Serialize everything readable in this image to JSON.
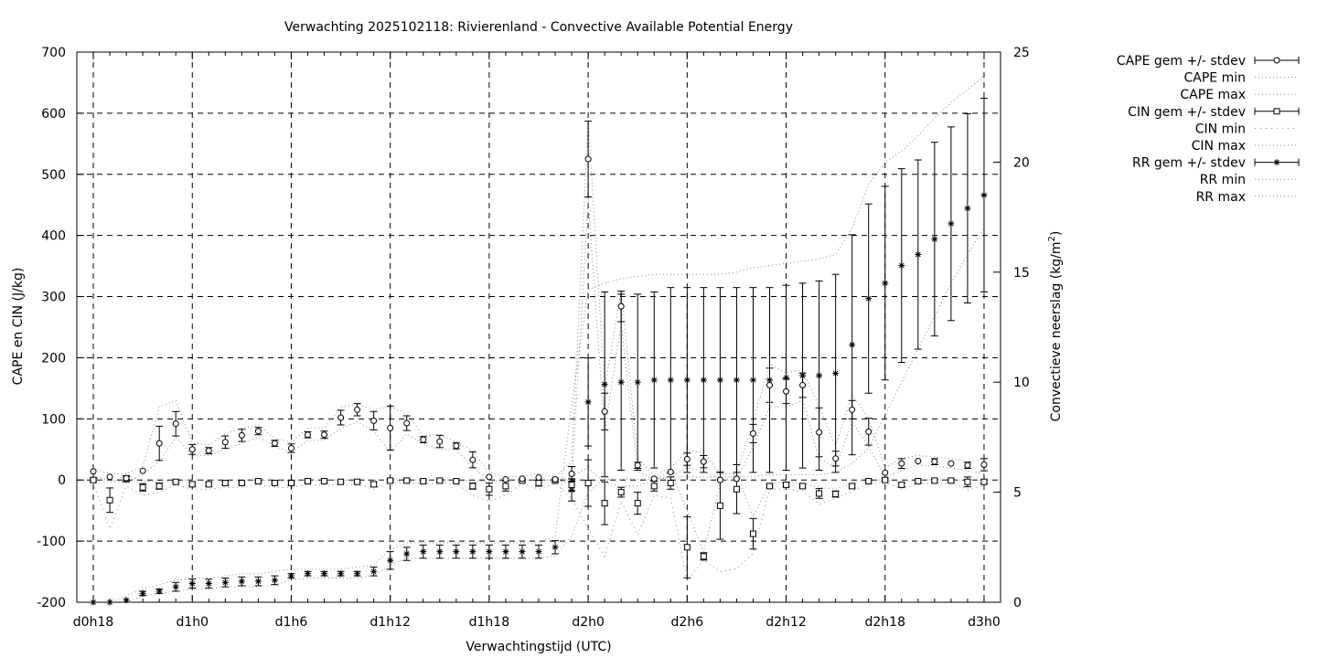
{
  "chart_data": {
    "type": "scatter",
    "title": "Verwachting 2025102118: Rivierenland - Convective Available Potential Energy",
    "xlabel": "Verwachtingstijd (UTC)",
    "ylabel": "CAPE en CIN (J/kg)",
    "y2label_main": "Convectieve neerslag (kg/m",
    "y2label_sup": "2",
    "y2label_end": ")",
    "x_ticks": [
      "d0h18",
      "d1h0",
      "d1h6",
      "d1h12",
      "d1h18",
      "d2h0",
      "d2h6",
      "d2h12",
      "d2h18",
      "d3h0"
    ],
    "x_unit": "hours since d0h0",
    "xlim": [
      17,
      73
    ],
    "ylim": [
      -200,
      700
    ],
    "y_ticks": [
      -200,
      -100,
      0,
      100,
      200,
      300,
      400,
      500,
      600,
      700
    ],
    "y2lim": [
      0,
      25
    ],
    "y2_ticks": [
      0,
      5,
      10,
      15,
      20,
      25
    ],
    "grid": true,
    "legend_placement": "outside-right",
    "legend": [
      {
        "label": "CAPE gem +/- stdev",
        "marker": "circle",
        "style": "errorbar"
      },
      {
        "label": "CAPE min",
        "style": "dotted"
      },
      {
        "label": "CAPE max",
        "style": "dotted"
      },
      {
        "label": "CIN gem +/- stdev",
        "marker": "square",
        "style": "errorbar"
      },
      {
        "label": "CIN min",
        "style": "dotted-sparse"
      },
      {
        "label": "CIN max",
        "style": "dotted"
      },
      {
        "label": "RR gem +/- stdev",
        "marker": "star",
        "style": "errorbar"
      },
      {
        "label": "RR min",
        "style": "dotted"
      },
      {
        "label": "RR max",
        "style": "dotted"
      }
    ],
    "cape": {
      "x": [
        18,
        19,
        20,
        21,
        22,
        23,
        24,
        25,
        26,
        27,
        28,
        29,
        30,
        31,
        32,
        33,
        34,
        35,
        36,
        37,
        38,
        39,
        40,
        41,
        42,
        43,
        44,
        45,
        46,
        47,
        48,
        49,
        50,
        51,
        52,
        53,
        54,
        55,
        56,
        57,
        58,
        59,
        60,
        61,
        62,
        63,
        64,
        65,
        66,
        67,
        68,
        69,
        70,
        71,
        72
      ],
      "y": [
        14,
        5,
        3,
        15,
        60,
        92,
        50,
        48,
        62,
        73,
        80,
        60,
        52,
        74,
        74,
        102,
        115,
        97,
        85,
        93,
        66,
        63,
        56,
        33,
        5,
        1,
        2,
        4,
        1,
        10,
        525,
        112,
        284,
        24,
        2,
        13,
        34,
        30,
        0,
        2,
        76,
        155,
        145,
        155,
        78,
        35,
        115,
        79,
        12,
        27,
        31,
        30,
        27,
        24,
        25
      ],
      "err": [
        0,
        0,
        0,
        0,
        28,
        20,
        8,
        5,
        10,
        10,
        6,
        5,
        7,
        5,
        6,
        12,
        10,
        15,
        36,
        12,
        5,
        10,
        5,
        13,
        0,
        0,
        0,
        0,
        0,
        12,
        62,
        30,
        25,
        5,
        0,
        0,
        10,
        10,
        0,
        0,
        15,
        28,
        20,
        20,
        40,
        12,
        15,
        22,
        0,
        8,
        0,
        5,
        0,
        5,
        10
      ]
    },
    "cape_min": {
      "x": [
        18,
        19,
        20,
        21,
        22,
        23,
        24,
        25,
        26,
        27,
        28,
        29,
        30,
        31,
        32,
        33,
        34,
        35,
        36,
        37,
        38,
        39,
        40,
        41,
        42,
        43,
        44,
        45,
        46,
        47,
        48,
        49,
        50,
        51,
        52,
        53,
        54,
        55,
        56,
        57,
        58,
        59,
        60,
        61,
        62,
        63,
        64,
        65,
        66,
        67,
        68,
        69,
        70,
        71,
        72
      ],
      "y": [
        5,
        0,
        -5,
        10,
        30,
        70,
        40,
        40,
        50,
        60,
        70,
        55,
        45,
        65,
        65,
        85,
        95,
        80,
        45,
        75,
        60,
        50,
        50,
        20,
        0,
        0,
        0,
        0,
        0,
        -5,
        460,
        80,
        255,
        15,
        0,
        5,
        20,
        15,
        0,
        0,
        55,
        120,
        120,
        130,
        35,
        20,
        95,
        55,
        5,
        15,
        25,
        22,
        20,
        15,
        10
      ]
    },
    "cape_max": {
      "x": [
        18,
        19,
        20,
        21,
        22,
        23,
        24,
        25,
        26,
        27,
        28,
        29,
        30,
        31,
        32,
        33,
        34,
        35,
        36,
        37,
        38,
        39,
        40,
        41,
        42,
        43,
        44,
        45,
        46,
        47,
        48,
        49,
        50,
        51,
        52,
        53,
        54,
        55,
        56,
        57,
        58,
        59,
        60,
        61,
        62,
        63,
        64,
        65,
        66,
        67,
        68,
        69,
        70,
        71,
        72
      ],
      "y": [
        20,
        10,
        10,
        22,
        120,
        130,
        60,
        58,
        75,
        85,
        90,
        68,
        62,
        85,
        85,
        118,
        125,
        115,
        120,
        108,
        72,
        75,
        62,
        48,
        12,
        5,
        6,
        10,
        5,
        30,
        590,
        150,
        310,
        35,
        8,
        20,
        48,
        45,
        10,
        10,
        95,
        190,
        175,
        180,
        120,
        55,
        140,
        100,
        20,
        35,
        40,
        38,
        35,
        30,
        35
      ]
    },
    "cin": {
      "x": [
        18,
        19,
        20,
        21,
        22,
        23,
        24,
        25,
        26,
        27,
        28,
        29,
        30,
        31,
        32,
        33,
        34,
        35,
        36,
        37,
        38,
        39,
        40,
        41,
        42,
        43,
        44,
        45,
        46,
        47,
        48,
        49,
        50,
        51,
        52,
        53,
        54,
        55,
        56,
        57,
        58,
        59,
        60,
        61,
        62,
        63,
        64,
        65,
        66,
        67,
        68,
        69,
        70,
        71,
        72
      ],
      "y": [
        0,
        -33,
        2,
        -12,
        -10,
        -3,
        -7,
        -7,
        -5,
        -5,
        -2,
        -5,
        -5,
        -2,
        -2,
        -3,
        -3,
        -7,
        -1,
        -1,
        -2,
        -1,
        -2,
        -10,
        -15,
        -10,
        -1,
        -5,
        -1,
        -8,
        -5,
        -38,
        -20,
        -38,
        -10,
        -5,
        -110,
        -125,
        -42,
        -15,
        -88,
        -10,
        -8,
        -10,
        -22,
        -23,
        -10,
        -2,
        0,
        -8,
        -2,
        -1,
        -1,
        -3,
        -3
      ],
      "err": [
        3,
        20,
        5,
        6,
        5,
        2,
        3,
        3,
        3,
        2,
        2,
        2,
        3,
        2,
        2,
        2,
        2,
        4,
        2,
        2,
        2,
        2,
        2,
        5,
        10,
        8,
        2,
        5,
        2,
        10,
        38,
        35,
        8,
        18,
        8,
        10,
        50,
        6,
        55,
        40,
        25,
        3,
        3,
        3,
        8,
        5,
        3,
        2,
        2,
        3,
        2,
        2,
        2,
        8,
        3
      ]
    },
    "cin_min": {
      "x": [
        18,
        19,
        20,
        21,
        22,
        23,
        24,
        25,
        26,
        27,
        28,
        29,
        30,
        31,
        32,
        33,
        34,
        35,
        36,
        37,
        38,
        39,
        40,
        41,
        42,
        43,
        44,
        45,
        46,
        47,
        48,
        49,
        50,
        51,
        52,
        53,
        54,
        55,
        56,
        57,
        58,
        59,
        60,
        61,
        62,
        63,
        64,
        65,
        66,
        67,
        68,
        69,
        70,
        71,
        72
      ],
      "y": [
        -5,
        -80,
        -10,
        -25,
        -20,
        -8,
        -15,
        -15,
        -12,
        -12,
        -8,
        -12,
        -12,
        -8,
        -8,
        -8,
        -8,
        -15,
        -5,
        -5,
        -6,
        -5,
        -6,
        -25,
        -35,
        -25,
        -5,
        -15,
        -5,
        -30,
        -80,
        -125,
        -35,
        -90,
        -25,
        -30,
        -165,
        -130,
        -150,
        -145,
        -120,
        -15,
        -15,
        -18,
        -40,
        -30,
        -18,
        -6,
        -3,
        -15,
        -6,
        -5,
        -5,
        -15,
        -10
      ]
    },
    "cin_max": {
      "x": [
        18,
        19,
        20,
        21,
        22,
        23,
        24,
        25,
        26,
        27,
        28,
        29,
        30,
        31,
        32,
        33,
        34,
        35,
        36,
        37,
        38,
        39,
        40,
        41,
        42,
        43,
        44,
        45,
        46,
        47,
        48,
        49,
        50,
        51,
        52,
        53,
        54,
        55,
        56,
        57,
        58,
        59,
        60,
        61,
        62,
        63,
        64,
        65,
        66,
        67,
        68,
        69,
        70,
        71,
        72
      ],
      "y": [
        3,
        -5,
        8,
        -2,
        -2,
        0,
        0,
        0,
        0,
        0,
        0,
        0,
        0,
        0,
        0,
        0,
        0,
        0,
        0,
        0,
        0,
        0,
        0,
        -2,
        -2,
        -2,
        0,
        0,
        0,
        5,
        20,
        -5,
        -10,
        -10,
        0,
        15,
        -50,
        -118,
        -5,
        10,
        -60,
        -5,
        -3,
        -5,
        -12,
        -15,
        -5,
        0,
        0,
        -3,
        0,
        0,
        0,
        0,
        0
      ]
    },
    "rr": {
      "x": [
        18,
        19,
        20,
        21,
        22,
        23,
        24,
        25,
        26,
        27,
        28,
        29,
        30,
        31,
        32,
        33,
        34,
        35,
        36,
        37,
        38,
        39,
        40,
        41,
        42,
        43,
        44,
        45,
        46,
        47,
        48,
        49,
        50,
        51,
        52,
        53,
        54,
        55,
        56,
        57,
        58,
        59,
        60,
        61,
        62,
        63,
        64,
        65,
        66,
        67,
        68,
        69,
        70,
        71,
        72
      ],
      "y": [
        0,
        0,
        0.1,
        0.4,
        0.5,
        0.7,
        0.85,
        0.85,
        0.9,
        0.95,
        0.95,
        1.0,
        1.2,
        1.3,
        1.3,
        1.3,
        1.3,
        1.4,
        1.9,
        2.2,
        2.3,
        2.3,
        2.3,
        2.3,
        2.3,
        2.3,
        2.3,
        2.3,
        2.5,
        5.1,
        9.1,
        9.9,
        10.0,
        10.0,
        10.1,
        10.1,
        10.1,
        10.1,
        10.1,
        10.1,
        10.1,
        10.1,
        10.2,
        10.3,
        10.3,
        10.4,
        11.7,
        13.8,
        14.5,
        15.3,
        15.8,
        16.5,
        17.2,
        17.9,
        18.5
      ],
      "err": [
        0,
        0,
        0,
        0.1,
        0.1,
        0.2,
        0.2,
        0.2,
        0.2,
        0.2,
        0.2,
        0.2,
        0.1,
        0.1,
        0.1,
        0.1,
        0.1,
        0.2,
        0.4,
        0.3,
        0.3,
        0.3,
        0.3,
        0.3,
        0.3,
        0.3,
        0.3,
        0.3,
        0.3,
        0.5,
        2.0,
        4.2,
        4.0,
        4.0,
        4.0,
        4.2,
        4.2,
        4.2,
        4.2,
        4.2,
        4.2,
        4.2,
        4.2,
        4.2,
        4.3,
        4.5,
        5.0,
        4.3,
        4.4,
        4.4,
        4.3,
        4.4,
        4.4,
        4.3,
        4.4
      ]
    },
    "rr_min": {
      "x": [
        18,
        19,
        20,
        21,
        22,
        23,
        24,
        25,
        26,
        27,
        28,
        29,
        30,
        31,
        32,
        33,
        34,
        35,
        36,
        37,
        38,
        39,
        40,
        41,
        42,
        43,
        44,
        45,
        46,
        47,
        48,
        49,
        50,
        51,
        52,
        53,
        54,
        55,
        56,
        57,
        58,
        59,
        60,
        61,
        62,
        63,
        64,
        65,
        66,
        67,
        68,
        69,
        70,
        71,
        72
      ],
      "y": [
        0,
        0,
        0,
        0.3,
        0.4,
        0.5,
        0.6,
        0.6,
        0.7,
        0.7,
        0.7,
        0.8,
        1.0,
        1.1,
        1.1,
        1.1,
        1.1,
        1.2,
        1.7,
        2.0,
        2.0,
        2.0,
        2.0,
        2.0,
        2.0,
        2.0,
        2.0,
        2.0,
        2.1,
        3.0,
        5.0,
        5.6,
        5.6,
        5.6,
        5.6,
        5.7,
        5.7,
        5.7,
        5.7,
        5.7,
        5.7,
        5.8,
        5.8,
        5.8,
        5.8,
        5.9,
        6.3,
        7.0,
        8.5,
        10.0,
        11.5,
        13.0,
        14.5,
        15.8,
        17.0
      ]
    },
    "rr_max": {
      "x": [
        18,
        19,
        20,
        21,
        22,
        23,
        24,
        25,
        26,
        27,
        28,
        29,
        30,
        31,
        32,
        33,
        34,
        35,
        36,
        37,
        38,
        39,
        40,
        41,
        42,
        43,
        44,
        45,
        46,
        47,
        48,
        49,
        50,
        51,
        52,
        53,
        54,
        55,
        56,
        57,
        58,
        59,
        60,
        61,
        62,
        63,
        64,
        65,
        66,
        67,
        68,
        69,
        70,
        71,
        72
      ],
      "y": [
        0,
        0,
        0.3,
        0.6,
        0.8,
        1.0,
        1.1,
        1.1,
        1.2,
        1.3,
        1.3,
        1.4,
        1.5,
        1.5,
        1.5,
        1.5,
        1.6,
        1.7,
        2.4,
        2.7,
        2.7,
        2.7,
        2.7,
        2.7,
        2.7,
        2.7,
        2.7,
        2.7,
        3.0,
        9.0,
        14.2,
        14.5,
        14.7,
        14.8,
        14.9,
        14.9,
        14.9,
        14.9,
        14.9,
        15.0,
        15.2,
        15.3,
        15.4,
        15.5,
        15.6,
        15.8,
        17.0,
        19.0,
        20.0,
        20.5,
        21.2,
        22.0,
        22.7,
        23.3,
        23.9
      ]
    }
  }
}
